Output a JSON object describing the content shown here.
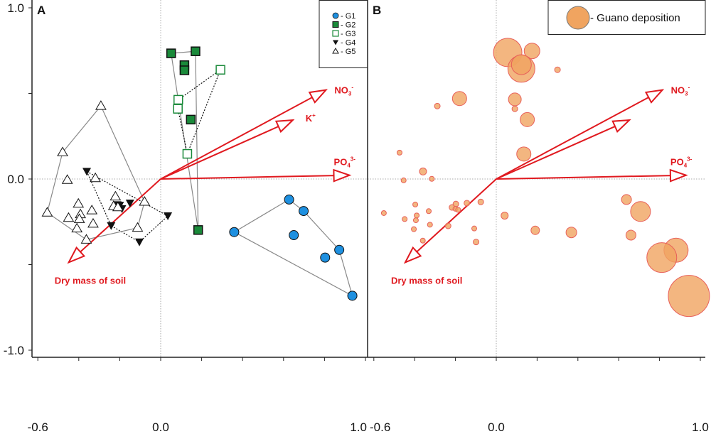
{
  "chart_data": [
    {
      "type": "scatter",
      "panel": "A",
      "title": "A",
      "xlim": [
        -0.6,
        1.0
      ],
      "ylim": [
        -1.0,
        1.0
      ],
      "x_ticks": [
        -0.6,
        -0.4,
        -0.2,
        0.0,
        0.2,
        0.4,
        0.6,
        0.8,
        1.0
      ],
      "x_tick_labels": [
        "-0.6",
        "0.0",
        "1.0"
      ],
      "y_ticks": [
        -1.0,
        -0.5,
        0.0,
        0.5,
        1.0
      ],
      "y_tick_labels": [
        "1.0",
        "0.0",
        "-1.0"
      ],
      "legend_placement": "top-right",
      "series": [
        {
          "name": "G1",
          "legend": "- G1",
          "marker": "circle",
          "color": "#1e90e0",
          "hull": "solid",
          "points": [
            [
              0.359,
              -0.31
            ],
            [
              0.627,
              -0.12
            ],
            [
              0.698,
              -0.187
            ],
            [
              0.65,
              -0.328
            ],
            [
              0.872,
              -0.414
            ],
            [
              0.803,
              -0.459
            ],
            [
              0.936,
              -0.682
            ]
          ],
          "hull_points": [
            [
              0.359,
              -0.31
            ],
            [
              0.627,
              -0.12
            ],
            [
              0.698,
              -0.187
            ],
            [
              0.872,
              -0.414
            ],
            [
              0.936,
              -0.682
            ]
          ]
        },
        {
          "name": "G2",
          "legend": "- G2",
          "marker": "filled-square",
          "color": "#1a8a3a",
          "hull": "solid",
          "points": [
            [
              0.051,
              0.734
            ],
            [
              0.17,
              0.746
            ],
            [
              0.116,
              0.665
            ],
            [
              0.116,
              0.635
            ],
            [
              0.147,
              0.347
            ],
            [
              0.183,
              -0.298
            ]
          ],
          "hull_points": [
            [
              0.051,
              0.734
            ],
            [
              0.17,
              0.746
            ],
            [
              0.183,
              -0.298
            ]
          ]
        },
        {
          "name": "G3",
          "legend": "- G3",
          "marker": "open-square",
          "color": "#1a8a3a",
          "hull": "dotted",
          "points": [
            [
              0.292,
              0.638
            ],
            [
              0.086,
              0.463
            ],
            [
              0.084,
              0.41
            ],
            [
              0.13,
              0.147
            ]
          ],
          "hull_points": [
            [
              0.292,
              0.638
            ],
            [
              0.13,
              0.147
            ],
            [
              0.084,
              0.41
            ],
            [
              0.086,
              0.463
            ]
          ]
        },
        {
          "name": "G4",
          "legend": "- G4",
          "marker": "filled-down-triangle",
          "color": "#111111",
          "hull": "dotted",
          "points": [
            [
              -0.361,
              0.044
            ],
            [
              -0.242,
              -0.273
            ],
            [
              -0.104,
              -0.368
            ],
            [
              0.035,
              -0.216
            ],
            [
              -0.15,
              -0.141
            ],
            [
              -0.2,
              -0.154
            ],
            [
              -0.189,
              -0.174
            ],
            [
              -0.212,
              -0.151
            ]
          ],
          "hull_points": [
            [
              -0.361,
              0.044
            ],
            [
              0.035,
              -0.216
            ],
            [
              -0.104,
              -0.368
            ],
            [
              -0.242,
              -0.273
            ]
          ]
        },
        {
          "name": "G5",
          "legend": "- G5",
          "marker": "open-triangle",
          "color": "#111111",
          "hull": "solid",
          "points": [
            [
              -0.292,
              0.427
            ],
            [
              -0.479,
              0.156
            ],
            [
              -0.456,
              -0.005
            ],
            [
              -0.319,
              0.005
            ],
            [
              -0.554,
              -0.196
            ],
            [
              -0.402,
              -0.144
            ],
            [
              -0.45,
              -0.227
            ],
            [
              -0.392,
              -0.206
            ],
            [
              -0.397,
              -0.234
            ],
            [
              -0.336,
              -0.183
            ],
            [
              -0.33,
              -0.261
            ],
            [
              -0.409,
              -0.289
            ],
            [
              -0.363,
              -0.354
            ],
            [
              -0.221,
              -0.102
            ],
            [
              -0.23,
              -0.158
            ],
            [
              -0.209,
              -0.165
            ],
            [
              -0.113,
              -0.285
            ],
            [
              -0.079,
              -0.133
            ]
          ],
          "hull_points": [
            [
              -0.554,
              -0.196
            ],
            [
              -0.479,
              0.156
            ],
            [
              -0.292,
              0.427
            ],
            [
              -0.079,
              -0.133
            ],
            [
              -0.113,
              -0.285
            ],
            [
              -0.363,
              -0.354
            ]
          ]
        }
      ],
      "vectors": [
        {
          "name": "NO3",
          "label": "NO",
          "sub": "3",
          "sup": "-",
          "x": 0.807,
          "y": 0.52
        },
        {
          "name": "K",
          "label": "K",
          "sub": "",
          "sup": "+",
          "x": 0.645,
          "y": 0.344
        },
        {
          "name": "PO4",
          "label": "PO",
          "sub": "4",
          "sup": "3-",
          "x": 0.922,
          "y": 0.022
        },
        {
          "name": "dry-mass",
          "label": "Dry mass of soil",
          "sub": "",
          "sup": "",
          "x": -0.449,
          "y": -0.487
        }
      ]
    },
    {
      "type": "scatter",
      "panel": "B",
      "title": "B",
      "xlim": [
        -0.6,
        1.0
      ],
      "ylim": [
        -1.0,
        1.0
      ],
      "x_ticks": [
        -0.6,
        -0.4,
        -0.2,
        0.0,
        0.2,
        0.4,
        0.6,
        0.8,
        1.0
      ],
      "x_tick_labels": [
        "-0.6",
        "0.0",
        "1.0"
      ],
      "legend_placement": "top-right",
      "legend": "- Guano deposition",
      "bubble_color": "#f0a460",
      "bubble_edge": "#e8605a",
      "series": [
        {
          "name": "Guano deposition",
          "marker": "bubble",
          "points": [
            [
              0.056,
              0.739,
              20
            ],
            [
              0.175,
              0.748,
              11
            ],
            [
              0.123,
              0.644,
              19
            ],
            [
              0.123,
              0.668,
              14
            ],
            [
              0.3,
              0.638,
              4
            ],
            [
              -0.18,
              0.47,
              10
            ],
            [
              -0.289,
              0.426,
              4
            ],
            [
              0.091,
              0.465,
              9
            ],
            [
              0.091,
              0.41,
              4
            ],
            [
              0.152,
              0.347,
              10
            ],
            [
              0.135,
              0.146,
              10
            ],
            [
              -0.474,
              0.154,
              3.5
            ],
            [
              -0.359,
              0.044,
              5
            ],
            [
              -0.454,
              -0.008,
              3.5
            ],
            [
              -0.316,
              0.001,
              3.5
            ],
            [
              -0.551,
              -0.199,
              3.5
            ],
            [
              -0.397,
              -0.149,
              3.5
            ],
            [
              -0.449,
              -0.234,
              3.5
            ],
            [
              -0.394,
              -0.241,
              3.5
            ],
            [
              -0.39,
              -0.213,
              3.5
            ],
            [
              -0.404,
              -0.293,
              3.5
            ],
            [
              -0.331,
              -0.188,
              3.5
            ],
            [
              -0.325,
              -0.267,
              3.5
            ],
            [
              -0.36,
              -0.36,
              3.5
            ],
            [
              -0.236,
              -0.274,
              4
            ],
            [
              -0.198,
              -0.146,
              4
            ],
            [
              -0.217,
              -0.166,
              4
            ],
            [
              -0.2,
              -0.174,
              3.5
            ],
            [
              -0.187,
              -0.18,
              3.5
            ],
            [
              -0.144,
              -0.141,
              4
            ],
            [
              -0.076,
              -0.134,
              4
            ],
            [
              -0.108,
              -0.289,
              3.5
            ],
            [
              -0.099,
              -0.368,
              4
            ],
            [
              0.041,
              -0.214,
              5
            ],
            [
              0.191,
              -0.3,
              6
            ],
            [
              0.368,
              -0.312,
              7.5
            ],
            [
              0.638,
              -0.12,
              7
            ],
            [
              0.707,
              -0.19,
              14
            ],
            [
              0.66,
              -0.328,
              7
            ],
            [
              0.881,
              -0.416,
              17
            ],
            [
              0.811,
              -0.459,
              21
            ],
            [
              0.944,
              -0.683,
              29
            ]
          ]
        }
      ],
      "vectors": [
        {
          "name": "NO3",
          "label": "NO",
          "sub": "3",
          "sup": "-",
          "x": 0.814,
          "y": 0.52
        },
        {
          "name": "K",
          "label": "",
          "sub": "",
          "sup": "",
          "x": 0.652,
          "y": 0.344
        },
        {
          "name": "PO4",
          "label": "PO",
          "sub": "4",
          "sup": "3-",
          "x": 0.93,
          "y": 0.022
        },
        {
          "name": "dry-mass",
          "label": "Dry mass of soil",
          "sub": "",
          "sup": "",
          "x": -0.446,
          "y": -0.487
        }
      ]
    }
  ]
}
